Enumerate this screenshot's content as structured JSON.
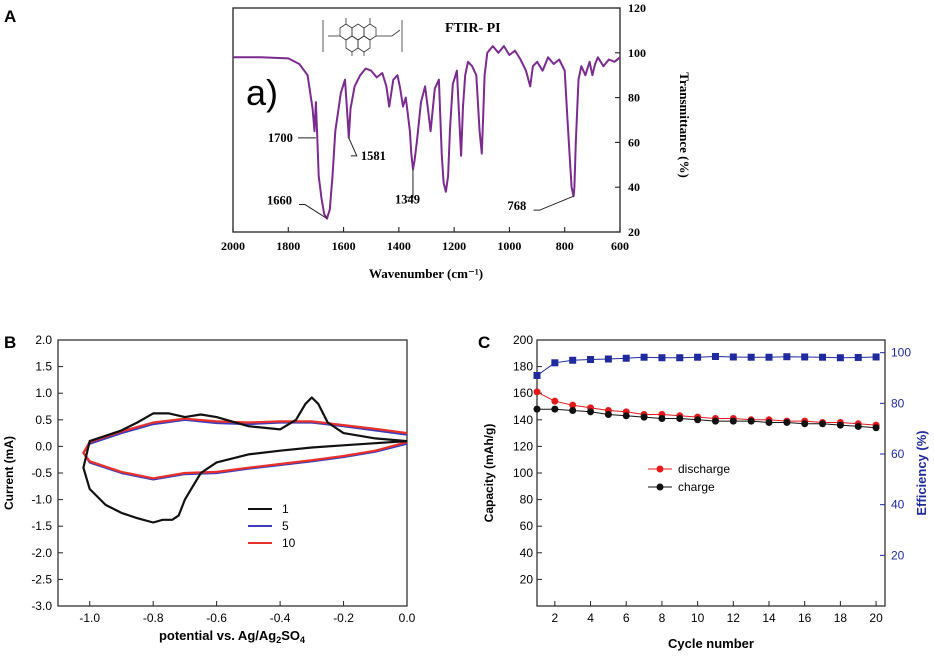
{
  "colors": {
    "ftir": "#7b2b8f",
    "cv1": "#111111",
    "cv5": "#3d3dbb",
    "cv10": "#e8312b",
    "discharge": "#e31a1c",
    "charge": "#111111",
    "efficiency": "#1f2a9e",
    "right_axis_c": "#1f2a9e"
  },
  "chart_data": [
    {
      "panel": "A",
      "type": "line",
      "title": "FTIR- PI",
      "inset_label": "a)",
      "structure_icon": "polyimide-structure-icon",
      "xlabel": "Wavenumber (cm⁻¹)",
      "ylabel": "Transmittance (%)",
      "xlim": [
        2000,
        600
      ],
      "ylim": [
        20,
        120
      ],
      "xticks": [
        2000,
        1800,
        1600,
        1400,
        1200,
        1000,
        800,
        600
      ],
      "yticks": [
        20,
        40,
        60,
        80,
        100,
        120
      ],
      "series": [
        {
          "name": "FTIR-PI",
          "x": [
            2000,
            1900,
            1800,
            1760,
            1730,
            1712,
            1705,
            1700,
            1695,
            1690,
            1680,
            1670,
            1660,
            1650,
            1640,
            1630,
            1610,
            1595,
            1585,
            1581,
            1575,
            1560,
            1540,
            1520,
            1500,
            1480,
            1460,
            1445,
            1435,
            1420,
            1405,
            1395,
            1385,
            1375,
            1360,
            1355,
            1349,
            1343,
            1335,
            1320,
            1305,
            1295,
            1285,
            1270,
            1255,
            1245,
            1238,
            1230,
            1222,
            1215,
            1205,
            1190,
            1182,
            1175,
            1168,
            1160,
            1150,
            1135,
            1120,
            1108,
            1100,
            1095,
            1090,
            1080,
            1060,
            1040,
            1020,
            1000,
            980,
            960,
            940,
            925,
            915,
            900,
            880,
            860,
            840,
            820,
            800,
            790,
            780,
            775,
            770,
            768,
            765,
            760,
            750,
            740,
            725,
            710,
            700,
            690,
            680,
            660,
            640,
            620,
            600
          ],
          "y": [
            98,
            98,
            97.5,
            95,
            90,
            75,
            65,
            78,
            62,
            45,
            35,
            28,
            26,
            30,
            45,
            65,
            82,
            88,
            70,
            62,
            75,
            85,
            90,
            93,
            92,
            89,
            91,
            85,
            76,
            88,
            90,
            84,
            76,
            80,
            65,
            55,
            48,
            52,
            60,
            78,
            85,
            75,
            65,
            84,
            88,
            55,
            42,
            38,
            45,
            66,
            86,
            92,
            72,
            54,
            76,
            90,
            96,
            94,
            90,
            65,
            55,
            72,
            90,
            100,
            103,
            100,
            103,
            99,
            101,
            97,
            92,
            85,
            94,
            96,
            92,
            98,
            95,
            97,
            92,
            70,
            50,
            40,
            37,
            36,
            40,
            60,
            88,
            94,
            90,
            96,
            90,
            95,
            98,
            94,
            97,
            96,
            98
          ]
        }
      ],
      "annotations": [
        {
          "text": "1700",
          "x": 1700,
          "y": 62
        },
        {
          "text": "1660",
          "x": 1660,
          "y": 26
        },
        {
          "text": "1581",
          "x": 1581,
          "y": 62
        },
        {
          "text": "1349",
          "x": 1349,
          "y": 48
        },
        {
          "text": "768",
          "x": 768,
          "y": 36
        }
      ]
    },
    {
      "panel": "B",
      "type": "line",
      "xlabel": "potential vs. Ag/Ag",
      "xlabel_sub": "2",
      "xlabel_end": "SO",
      "xlabel_sub2": "4",
      "ylabel": "Current (mA)",
      "xlim": [
        -1.1,
        0.0
      ],
      "ylim": [
        -3.0,
        2.0
      ],
      "xticks": [
        -1.0,
        -0.8,
        -0.6,
        -0.4,
        -0.2,
        0.0
      ],
      "xtick_labels": [
        "-1.0",
        "-0.8",
        "-0.6",
        "-0.4",
        "-0.2",
        "0.0"
      ],
      "yticks": [
        -3.0,
        -2.5,
        -2.0,
        -1.5,
        -1.0,
        -0.5,
        0.0,
        0.5,
        1.0,
        1.5,
        2.0
      ],
      "ytick_labels": [
        "-3.0",
        "-2.5",
        "-2.0",
        "-1.5",
        "-1.0",
        "-0.5",
        "0.0",
        "0.5",
        "1.0",
        "1.5",
        "2.0"
      ],
      "legend_position": "lower-left",
      "series": [
        {
          "name": "1",
          "color_key": "cv1",
          "x": [
            0.0,
            -0.1,
            -0.2,
            -0.25,
            -0.28,
            -0.3,
            -0.32,
            -0.35,
            -0.4,
            -0.5,
            -0.6,
            -0.65,
            -0.7,
            -0.75,
            -0.8,
            -0.85,
            -0.9,
            -0.95,
            -1.0,
            -1.02,
            -1.0,
            -0.95,
            -0.9,
            -0.85,
            -0.8,
            -0.77,
            -0.74,
            -0.72,
            -0.7,
            -0.65,
            -0.6,
            -0.5,
            -0.4,
            -0.3,
            -0.2,
            -0.1,
            0.0
          ],
          "y": [
            0.1,
            0.15,
            0.25,
            0.45,
            0.8,
            0.92,
            0.8,
            0.5,
            0.32,
            0.38,
            0.55,
            0.6,
            0.55,
            0.62,
            0.62,
            0.45,
            0.3,
            0.2,
            0.1,
            -0.4,
            -0.8,
            -1.1,
            -1.25,
            -1.35,
            -1.43,
            -1.38,
            -1.38,
            -1.3,
            -1.0,
            -0.5,
            -0.3,
            -0.15,
            -0.08,
            -0.02,
            0.02,
            0.06,
            0.1
          ]
        },
        {
          "name": "5",
          "color_key": "cv5",
          "x": [
            0.0,
            -0.1,
            -0.2,
            -0.3,
            -0.4,
            -0.5,
            -0.6,
            -0.7,
            -0.8,
            -0.9,
            -1.0,
            -1.02,
            -1.0,
            -0.9,
            -0.8,
            -0.7,
            -0.6,
            -0.5,
            -0.4,
            -0.3,
            -0.2,
            -0.1,
            0.0
          ],
          "y": [
            0.22,
            0.3,
            0.38,
            0.45,
            0.45,
            0.42,
            0.44,
            0.5,
            0.42,
            0.25,
            0.05,
            -0.12,
            -0.3,
            -0.5,
            -0.62,
            -0.52,
            -0.5,
            -0.42,
            -0.35,
            -0.28,
            -0.2,
            -0.1,
            0.05
          ]
        },
        {
          "name": "10",
          "color_key": "cv10",
          "x": [
            0.0,
            -0.1,
            -0.2,
            -0.3,
            -0.4,
            -0.5,
            -0.6,
            -0.7,
            -0.8,
            -0.9,
            -1.0,
            -1.02,
            -1.0,
            -0.9,
            -0.8,
            -0.7,
            -0.6,
            -0.5,
            -0.4,
            -0.3,
            -0.2,
            -0.1,
            0.0
          ],
          "y": [
            0.25,
            0.33,
            0.4,
            0.47,
            0.47,
            0.45,
            0.47,
            0.52,
            0.45,
            0.28,
            0.08,
            -0.12,
            -0.28,
            -0.48,
            -0.6,
            -0.5,
            -0.48,
            -0.4,
            -0.33,
            -0.26,
            -0.18,
            -0.08,
            0.08
          ]
        }
      ]
    },
    {
      "panel": "C",
      "type": "line",
      "xlabel": "Cycle number",
      "ylabel": "Capacity (mAh/g)",
      "ylabel_right": "Efficiency (%)",
      "xlim": [
        1,
        20.5
      ],
      "ylim": [
        0,
        200
      ],
      "ylim_right": [
        0,
        105
      ],
      "xticks": [
        2,
        4,
        6,
        8,
        10,
        12,
        14,
        16,
        18,
        20
      ],
      "yticks": [
        20,
        40,
        60,
        80,
        100,
        120,
        140,
        160,
        180,
        200
      ],
      "yticks_right": [
        20,
        40,
        60,
        80,
        100
      ],
      "legend_position": "center",
      "series": [
        {
          "name": "discharge",
          "axis": "left",
          "color_key": "discharge",
          "x": [
            1,
            2,
            3,
            4,
            5,
            6,
            7,
            8,
            9,
            10,
            11,
            12,
            13,
            14,
            15,
            16,
            17,
            18,
            19,
            20
          ],
          "y": [
            161,
            154,
            151,
            149,
            147,
            146,
            144,
            144,
            143,
            142,
            141,
            141,
            140,
            140,
            139,
            139,
            138,
            138,
            137,
            136
          ]
        },
        {
          "name": "charge",
          "axis": "left",
          "color_key": "charge",
          "x": [
            1,
            2,
            3,
            4,
            5,
            6,
            7,
            8,
            9,
            10,
            11,
            12,
            13,
            14,
            15,
            16,
            17,
            18,
            19,
            20
          ],
          "y": [
            148,
            148,
            147,
            146,
            144,
            143,
            142,
            141,
            141,
            140,
            139,
            139,
            139,
            138,
            138,
            137,
            137,
            136,
            135,
            134
          ]
        },
        {
          "name": "efficiency",
          "axis": "right",
          "color_key": "efficiency",
          "x": [
            1,
            2,
            3,
            4,
            5,
            6,
            7,
            8,
            9,
            10,
            11,
            12,
            13,
            14,
            15,
            16,
            17,
            18,
            19,
            20
          ],
          "y": [
            91,
            96,
            97,
            97.3,
            97.5,
            97.8,
            98.2,
            98,
            98,
            98.2,
            98.5,
            98.3,
            98.2,
            98.2,
            98.4,
            98.3,
            98.2,
            98,
            98.1,
            98.3
          ]
        }
      ]
    }
  ],
  "panels": {
    "a_label": "A",
    "b_label": "B",
    "c_label": "C"
  }
}
